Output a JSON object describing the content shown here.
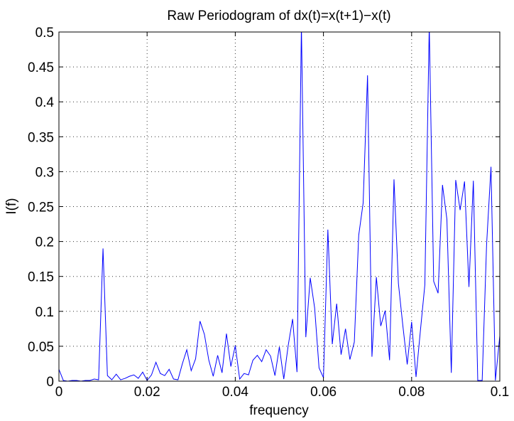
{
  "chart_data": {
    "type": "line",
    "title": "Raw Periodogram of dx(t)=x(t+1)−x(t)",
    "xlabel": "frequency",
    "ylabel": "I(f)",
    "xlim": [
      0,
      0.1
    ],
    "ylim": [
      0,
      0.5
    ],
    "xticks": [
      0,
      0.02,
      0.04,
      0.06,
      0.08,
      0.1
    ],
    "xtick_labels": [
      "0",
      "0.02",
      "0.04",
      "0.06",
      "0.08",
      "0.1"
    ],
    "yticks": [
      0,
      0.05,
      0.1,
      0.15,
      0.2,
      0.25,
      0.3,
      0.35,
      0.4,
      0.45,
      0.5
    ],
    "ytick_labels": [
      "0",
      "0.05",
      "0.1",
      "0.15",
      "0.2",
      "0.25",
      "0.3",
      "0.35",
      "0.4",
      "0.45",
      "0.5"
    ],
    "grid": true,
    "series": [
      {
        "color": "#0000ff",
        "x": [
          0,
          0.001,
          0.002,
          0.003,
          0.004,
          0.005,
          0.006,
          0.007,
          0.008,
          0.009,
          0.01,
          0.011,
          0.012,
          0.013,
          0.014,
          0.015,
          0.016,
          0.017,
          0.018,
          0.019,
          0.02,
          0.021,
          0.022,
          0.023,
          0.024,
          0.025,
          0.026,
          0.027,
          0.028,
          0.029,
          0.03,
          0.031,
          0.032,
          0.033,
          0.034,
          0.035,
          0.036,
          0.037,
          0.038,
          0.039,
          0.04,
          0.041,
          0.042,
          0.043,
          0.044,
          0.045,
          0.046,
          0.047,
          0.048,
          0.049,
          0.05,
          0.051,
          0.052,
          0.053,
          0.054,
          0.055,
          0.056,
          0.057,
          0.058,
          0.059,
          0.06,
          0.061,
          0.062,
          0.063,
          0.064,
          0.065,
          0.066,
          0.067,
          0.068,
          0.069,
          0.07,
          0.071,
          0.072,
          0.073,
          0.074,
          0.075,
          0.076,
          0.077,
          0.078,
          0.079,
          0.08,
          0.081,
          0.082,
          0.083,
          0.084,
          0.085,
          0.086,
          0.087,
          0.088,
          0.089,
          0.09,
          0.091,
          0.092,
          0.093,
          0.094,
          0.095,
          0.096,
          0.097,
          0.098,
          0.099,
          0.1
        ],
        "y": [
          0.017,
          0.001,
          0.0,
          0.001,
          0.001,
          0.0,
          0.001,
          0.001,
          0.003,
          0.002,
          0.19,
          0.008,
          0.002,
          0.01,
          0.002,
          0.004,
          0.007,
          0.009,
          0.004,
          0.013,
          0.001,
          0.009,
          0.027,
          0.011,
          0.008,
          0.017,
          0.003,
          0.002,
          0.025,
          0.045,
          0.015,
          0.032,
          0.086,
          0.067,
          0.03,
          0.007,
          0.037,
          0.012,
          0.068,
          0.021,
          0.051,
          0.003,
          0.011,
          0.009,
          0.03,
          0.037,
          0.028,
          0.045,
          0.036,
          0.008,
          0.049,
          0.003,
          0.051,
          0.089,
          0.013,
          0.51,
          0.063,
          0.148,
          0.105,
          0.019,
          0.005,
          0.217,
          0.053,
          0.111,
          0.038,
          0.075,
          0.031,
          0.056,
          0.209,
          0.255,
          0.438,
          0.035,
          0.149,
          0.079,
          0.101,
          0.03,
          0.289,
          0.14,
          0.08,
          0.024,
          0.085,
          0.006,
          0.073,
          0.138,
          0.51,
          0.143,
          0.126,
          0.281,
          0.232,
          0.012,
          0.288,
          0.245,
          0.286,
          0.135,
          0.287,
          0.001,
          0.001,
          0.195,
          0.307,
          0.001,
          0.065
        ]
      }
    ]
  }
}
